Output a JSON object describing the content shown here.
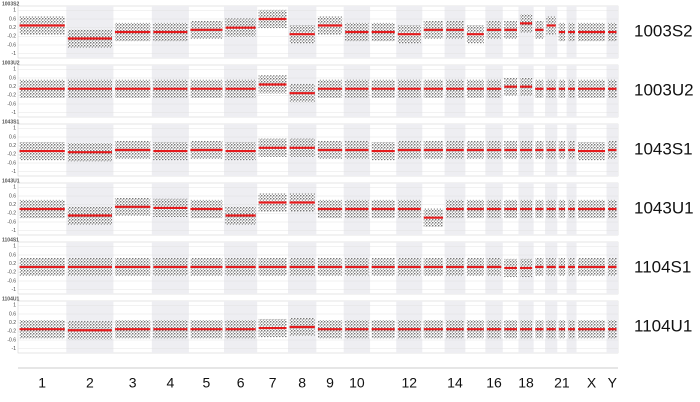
{
  "chart_data": [
    {
      "type": "segment",
      "title": "1003S2",
      "label": "1003S2",
      "ylim": [
        -1.2,
        1.2
      ],
      "yticks": [
        1,
        0.6,
        0.2,
        -0.2,
        -0.6,
        -1
      ],
      "color": "#e41a1c",
      "values": [
        0.3,
        -0.3,
        0,
        0,
        0.1,
        0.2,
        0.6,
        -0.1,
        0.3,
        0,
        0,
        -0.1,
        0.1,
        0.1,
        -0.1,
        0.1,
        0.1,
        0.4,
        0.1,
        0.3,
        0,
        0,
        0,
        0
      ]
    },
    {
      "type": "segment",
      "title": "1003U2",
      "label": "1003U2",
      "ylim": [
        -1.2,
        1.2
      ],
      "yticks": [
        1,
        0.6,
        0.2,
        -0.2,
        -0.6,
        -1
      ],
      "color": "#e41a1c",
      "values": [
        0.1,
        0.1,
        0.1,
        0.1,
        0.1,
        0.1,
        0.3,
        -0.1,
        0.1,
        0.1,
        0.1,
        0.1,
        0.1,
        0.1,
        0.1,
        0.1,
        0.2,
        0.2,
        0.1,
        0.1,
        0.1,
        0.1,
        0.1,
        0.1
      ]
    },
    {
      "type": "segment",
      "title": "1043S1",
      "label": "1043S1",
      "ylim": [
        -1.2,
        1.2
      ],
      "yticks": [
        1,
        0.6,
        0.2,
        -0.2,
        -0.6,
        -1
      ],
      "color": "#e41a1c",
      "values": [
        -0.05,
        -0.1,
        0,
        -0.05,
        0,
        -0.05,
        0.1,
        0.1,
        0,
        0,
        -0.05,
        0,
        0,
        0,
        0,
        0,
        0,
        0,
        0,
        0,
        0,
        0,
        -0.05,
        0
      ]
    },
    {
      "type": "segment",
      "title": "1043U1",
      "label": "1043U1",
      "ylim": [
        -1.2,
        1.2
      ],
      "yticks": [
        1,
        0.6,
        0.2,
        -0.2,
        -0.6,
        -1
      ],
      "color": "#e41a1c",
      "values": [
        0,
        -0.3,
        0.1,
        0.05,
        0,
        -0.3,
        0.3,
        0.3,
        0,
        0,
        0,
        0,
        -0.4,
        0,
        0,
        0,
        0,
        0,
        0,
        0,
        0,
        0,
        0,
        0
      ]
    },
    {
      "type": "segment",
      "title": "1104S1",
      "label": "1104S1",
      "ylim": [
        -1.2,
        1.2
      ],
      "yticks": [
        1,
        0.6,
        0.2,
        -0.2,
        -0.6,
        -1
      ],
      "color": "#e41a1c",
      "values": [
        0.05,
        0.05,
        0.05,
        0.05,
        0.05,
        0.05,
        0.05,
        0.05,
        0.05,
        0.05,
        0.05,
        0.05,
        0.05,
        0.05,
        0.05,
        0.05,
        0,
        0,
        0.05,
        0.05,
        0.05,
        0.05,
        0.05,
        0.05
      ]
    },
    {
      "type": "segment",
      "title": "1104U1",
      "label": "1104U1",
      "ylim": [
        -1.2,
        1.2
      ],
      "yticks": [
        1,
        0.6,
        0.2,
        -0.2,
        -0.6,
        -1
      ],
      "color": "#e41a1c",
      "values": [
        -0.1,
        -0.15,
        -0.1,
        -0.1,
        -0.1,
        -0.1,
        -0.05,
        0,
        -0.1,
        -0.1,
        -0.1,
        -0.1,
        -0.1,
        -0.1,
        -0.1,
        -0.1,
        -0.1,
        -0.1,
        -0.1,
        -0.1,
        -0.1,
        -0.1,
        -0.1,
        -0.1
      ],
      "categories": [
        "1",
        "2",
        "3",
        "4",
        "5",
        "6",
        "7",
        "8",
        "9",
        "10",
        null,
        "12",
        null,
        "14",
        null,
        "16",
        null,
        "18",
        null,
        null,
        "21",
        null,
        "X",
        "Y"
      ]
    }
  ]
}
